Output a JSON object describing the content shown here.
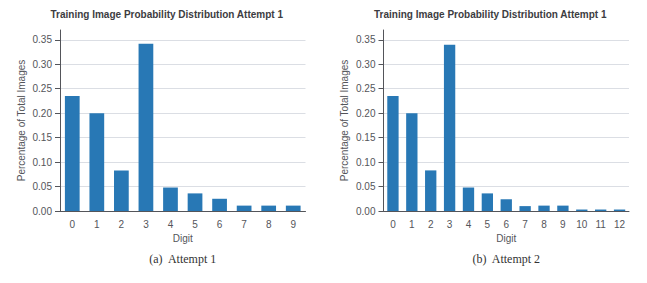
{
  "chart_data": [
    {
      "type": "bar",
      "title": "Training Image Probability Distribution Attempt 1",
      "xlabel": "Digit",
      "ylabel": "Percentage of Total Images",
      "annotation": "(a)  Attempt 1",
      "categories": [
        0,
        1,
        2,
        3,
        4,
        5,
        6,
        7,
        8,
        9
      ],
      "values": [
        0.235,
        0.2,
        0.083,
        0.342,
        0.048,
        0.036,
        0.025,
        0.011,
        0.011,
        0.011
      ],
      "color": "#2878b5",
      "ylim": [
        0,
        0.37
      ],
      "yticks": [
        {
          "value": 0,
          "label": "0.00"
        },
        0.05,
        {
          "value": 0.1,
          "label": "0.10"
        },
        0.15,
        {
          "value": 0.2,
          "label": "0.20"
        },
        0.25,
        {
          "value": 0.3,
          "label": "0.30"
        },
        0.35
      ]
    },
    {
      "type": "bar",
      "title": "Training Image Probability Distribution Attempt 1",
      "xlabel": "Digit",
      "ylabel": "Percentage of Total Images",
      "annotation": "(b)  Attempt 2",
      "categories": [
        0,
        1,
        2,
        3,
        4,
        5,
        6,
        7,
        8,
        9,
        10,
        11,
        12
      ],
      "values": [
        0.235,
        0.2,
        0.083,
        0.34,
        0.048,
        0.036,
        0.024,
        0.01,
        0.011,
        0.011,
        0.003,
        0.003,
        0.003
      ],
      "color": "#2878b5",
      "ylim": [
        0,
        0.37
      ],
      "yticks": [
        {
          "value": 0,
          "label": "0.00"
        },
        0.05,
        {
          "value": 0.1,
          "label": "0.10"
        },
        0.15,
        {
          "value": 0.2,
          "label": "0.20"
        },
        0.25,
        {
          "value": 0.3,
          "label": "0.30"
        },
        0.35
      ]
    }
  ]
}
